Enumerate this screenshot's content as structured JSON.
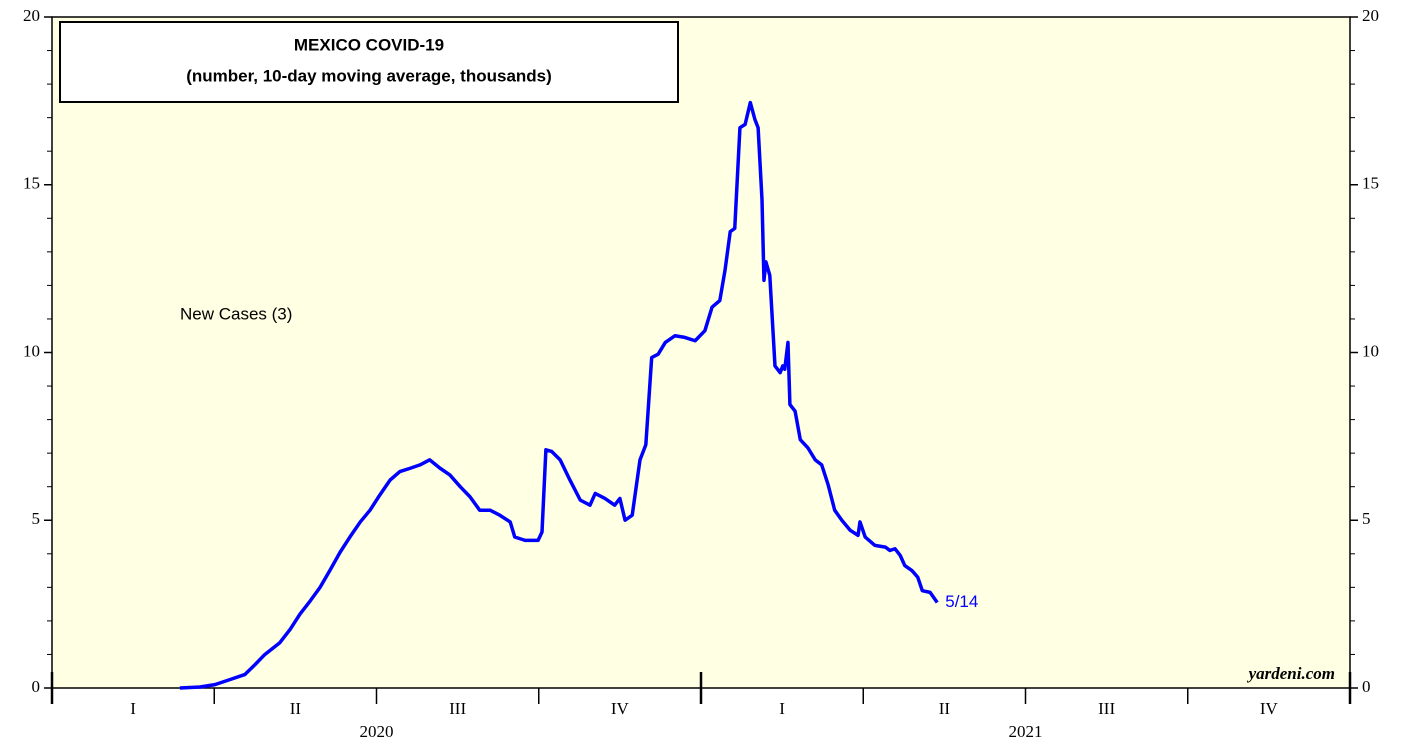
{
  "chart_data": {
    "type": "line",
    "title": "MEXICO COVID-19",
    "subtitle": "(number, 10-day moving average, thousands)",
    "x": [
      2020.197,
      2020.228,
      2020.251,
      2020.274,
      2020.297,
      2020.313,
      2020.328,
      2020.351,
      2020.367,
      2020.382,
      2020.398,
      2020.413,
      2020.428,
      2020.444,
      2020.459,
      2020.475,
      2020.49,
      2020.505,
      2020.521,
      2020.536,
      2020.552,
      2020.567,
      2020.582,
      2020.598,
      2020.613,
      2020.629,
      2020.644,
      2020.659,
      2020.675,
      2020.69,
      2020.706,
      2020.713,
      2020.729,
      2020.749,
      2020.755,
      2020.761,
      2020.77,
      2020.783,
      2020.798,
      2020.814,
      2020.829,
      2020.837,
      2020.852,
      2020.867,
      2020.875,
      2020.883,
      2020.894,
      2020.906,
      2020.915,
      2020.924,
      2020.934,
      2020.945,
      2020.96,
      2020.975,
      2020.991,
      2021.006,
      2021.017,
      2021.029,
      2021.037,
      2021.045,
      2021.052,
      2021.06,
      2021.068,
      2021.076,
      2021.083,
      2021.088,
      2021.094,
      2021.097,
      2021.1,
      2021.106,
      2021.114,
      2021.122,
      2021.126,
      2021.129,
      2021.134,
      2021.137,
      2021.145,
      2021.153,
      2021.165,
      2021.176,
      2021.186,
      2021.196,
      2021.206,
      2021.217,
      2021.23,
      2021.242,
      2021.245,
      2021.253,
      2021.268,
      2021.284,
      2021.291,
      2021.299,
      2021.307,
      2021.314,
      2021.325,
      2021.334,
      2021.341,
      2021.353,
      2021.364
    ],
    "series": [
      {
        "name": "New Cases (3)",
        "color": "#0000ff",
        "values": [
          0,
          0.03,
          0.1,
          0.25,
          0.4,
          0.7,
          1.0,
          1.35,
          1.75,
          2.2,
          2.6,
          3.0,
          3.5,
          4.05,
          4.5,
          4.95,
          5.3,
          5.75,
          6.2,
          6.45,
          6.55,
          6.65,
          6.8,
          6.55,
          6.35,
          6.0,
          5.7,
          5.3,
          5.3,
          5.15,
          4.95,
          4.5,
          4.4,
          4.4,
          4.65,
          7.1,
          7.05,
          6.8,
          6.2,
          5.6,
          5.45,
          5.8,
          5.65,
          5.45,
          5.65,
          5.0,
          5.15,
          6.8,
          7.25,
          9.85,
          9.95,
          10.3,
          10.5,
          10.45,
          10.35,
          10.65,
          11.35,
          11.55,
          12.45,
          13.6,
          13.7,
          16.7,
          16.8,
          17.45,
          16.95,
          16.7,
          14.55,
          12.15,
          12.7,
          12.3,
          9.6,
          9.4,
          9.6,
          9.5,
          10.3,
          8.45,
          8.25,
          7.4,
          7.15,
          6.8,
          6.65,
          6.05,
          5.3,
          5.0,
          4.7,
          4.55,
          4.95,
          4.5,
          4.25,
          4.2,
          4.1,
          4.15,
          3.95,
          3.65,
          3.5,
          3.3,
          2.9,
          2.85,
          2.55
        ]
      }
    ],
    "end_label": "5/14",
    "source": "yardeni.com",
    "xlim": [
      2020,
      2022
    ],
    "xticks": [
      2020,
      2020.25,
      2020.5,
      2020.75,
      2021,
      2021.25,
      2021.5,
      2021.75,
      2022
    ],
    "quarter_labels": [
      "I",
      "II",
      "III",
      "IV",
      "I",
      "II",
      "III",
      "IV"
    ],
    "year_labels": [
      "2020",
      "2021"
    ],
    "ylim": [
      0,
      20
    ],
    "yticks": [
      0,
      5,
      10,
      15,
      20
    ],
    "yminorticks": [
      1,
      2,
      3,
      4,
      6,
      7,
      8,
      9,
      11,
      12,
      13,
      14,
      16,
      17,
      18,
      19
    ],
    "background": "#ffffe3"
  }
}
